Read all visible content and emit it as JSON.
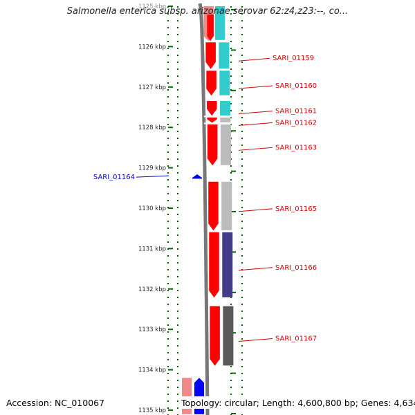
{
  "title": "Salmonella enterica subsp. arizonae serovar 62:z4,z23:--, co...",
  "accession_label": "Accession: NC_010067",
  "topology_label": "Topology: circular; Length: 4,600,800 bp; Genes: 4,634",
  "axis": {
    "unit": "kbp",
    "ticks": [
      {
        "kbp": 1125,
        "label": "1125 kbp"
      },
      {
        "kbp": 1126,
        "label": "1126 kbp"
      },
      {
        "kbp": 1127,
        "label": "1127 kbp"
      },
      {
        "kbp": 1128,
        "label": "1128 kbp"
      },
      {
        "kbp": 1129,
        "label": "1129 kbp"
      },
      {
        "kbp": 1130,
        "label": "1130 kbp"
      },
      {
        "kbp": 1131,
        "label": "1131 kbp"
      },
      {
        "kbp": 1132,
        "label": "1132 kbp"
      },
      {
        "kbp": 1133,
        "label": "1133 kbp"
      },
      {
        "kbp": 1134,
        "label": "1134 kbp"
      },
      {
        "kbp": 1135,
        "label": "1135 kbp"
      }
    ]
  },
  "colors": {
    "forward_gene": "#ff0000",
    "forward_gene_faded": "#f08a8a",
    "reverse_gene": "#0000ff",
    "label_forward": "#cc0000",
    "label_reverse": "#0000cc",
    "tick_green": "#006600",
    "backbone": "#777777",
    "cyan": "#33cccc",
    "light_gray": "#bbbbbb",
    "slate_blue": "#443c88",
    "dark_gray": "#5a5a5a"
  },
  "genes": [
    {
      "name": "SARI_01159",
      "strand": "+",
      "start_kbp": 1125.87,
      "end_kbp": 1126.57,
      "color": "#33cccc"
    },
    {
      "name": "SARI_01160",
      "strand": "+",
      "start_kbp": 1126.57,
      "end_kbp": 1127.23,
      "color": "#33cccc"
    },
    {
      "name": "SARI_01161",
      "strand": "+",
      "start_kbp": 1127.32,
      "end_kbp": 1127.73,
      "color": "#33cccc"
    },
    {
      "name": "SARI_01162",
      "strand": "+",
      "start_kbp": 1127.73,
      "end_kbp": 1127.9,
      "color": "#bbbbbb"
    },
    {
      "name": "SARI_01163",
      "strand": "+",
      "start_kbp": 1127.9,
      "end_kbp": 1128.96,
      "color": "#bbbbbb"
    },
    {
      "name": "SARI_01164",
      "strand": "-",
      "start_kbp": 1129.16,
      "end_kbp": 1129.27,
      "color": "#0000ff"
    },
    {
      "name": "SARI_01165",
      "strand": "+",
      "start_kbp": 1129.32,
      "end_kbp": 1130.57,
      "color": "#bbbbbb"
    },
    {
      "name": "SARI_01166",
      "strand": "+",
      "start_kbp": 1130.57,
      "end_kbp": 1132.23,
      "color": "#443c88"
    },
    {
      "name": "SARI_01167",
      "strand": "+",
      "start_kbp": 1132.4,
      "end_kbp": 1133.92,
      "color": "#5a5a5a"
    }
  ],
  "partial_genes": [
    {
      "strand": "+",
      "start_kbp": 1125.0,
      "end_kbp": 1125.87,
      "color": "#33cccc",
      "faded_top": true
    },
    {
      "strand": "+",
      "start_kbp": 1134.2,
      "end_kbp": 1135.1,
      "color": "#f08a8a"
    },
    {
      "strand": "-",
      "start_kbp": 1134.2,
      "end_kbp": 1135.1,
      "color": "#0000ff"
    }
  ]
}
